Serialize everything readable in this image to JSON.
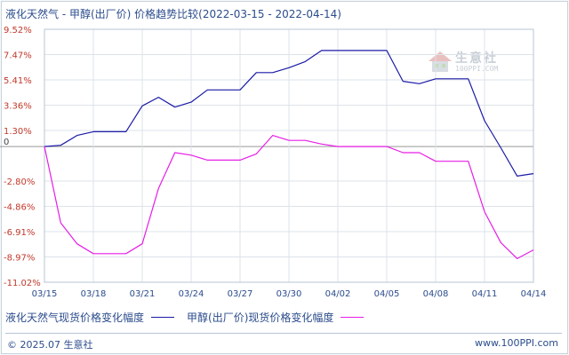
{
  "chart_data": {
    "type": "line",
    "title": "液化天然气 - 甲醇(出厂价) 价格趋势比较",
    "date_range": "(2022-03-15 - 2022-04-14)",
    "x_tick_labels": [
      "03/15",
      "03/18",
      "03/21",
      "03/24",
      "03/27",
      "03/30",
      "04/02",
      "04/05",
      "04/08",
      "04/11",
      "04/14"
    ],
    "y_tick_labels": [
      "9.52%",
      "7.47%",
      "5.41%",
      "3.36%",
      "1.30%",
      "0",
      "-2.80%",
      "-4.86%",
      "-6.91%",
      "-8.97%",
      "-11.02%"
    ],
    "y_tick_values": [
      9.52,
      7.47,
      5.41,
      3.36,
      1.3,
      0,
      -2.8,
      -4.86,
      -6.91,
      -8.97,
      -11.02
    ],
    "ylim": [
      -11.02,
      9.52
    ],
    "x_range": [
      0,
      30
    ],
    "grid": true,
    "series": [
      {
        "name": "液化天然气现货价格变化幅度",
        "color": "#1a1aa6",
        "x": [
          0,
          1,
          2,
          3,
          4,
          5,
          6,
          7,
          8,
          9,
          10,
          11,
          12,
          13,
          14,
          15,
          16,
          17,
          18,
          19,
          20,
          21,
          22,
          23,
          24,
          25,
          26,
          27,
          28,
          29,
          30
        ],
        "values": [
          0.0,
          0.1,
          0.9,
          1.2,
          1.2,
          1.2,
          3.3,
          4.0,
          3.2,
          3.6,
          4.6,
          4.6,
          4.6,
          6.0,
          6.0,
          6.4,
          6.9,
          7.8,
          7.8,
          7.8,
          7.8,
          7.8,
          5.3,
          5.1,
          5.5,
          5.5,
          5.5,
          2.1,
          -0.1,
          -2.4,
          -2.2
        ]
      },
      {
        "name": "甲醇(出厂价)现货价格变化幅度",
        "color": "#e61ee6",
        "x": [
          0,
          1,
          2,
          3,
          4,
          5,
          6,
          7,
          8,
          9,
          10,
          11,
          12,
          13,
          14,
          15,
          16,
          17,
          18,
          19,
          20,
          21,
          22,
          23,
          24,
          25,
          26,
          27,
          28,
          29,
          30
        ],
        "values": [
          0.0,
          -6.2,
          -7.9,
          -8.7,
          -8.7,
          -8.7,
          -7.9,
          -3.4,
          -0.5,
          -0.7,
          -1.1,
          -1.1,
          -1.1,
          -0.6,
          0.9,
          0.5,
          0.5,
          0.2,
          0.0,
          0.0,
          0.0,
          0.0,
          -0.5,
          -0.5,
          -1.2,
          -1.2,
          -1.2,
          -5.3,
          -7.8,
          -9.1,
          -8.4
        ]
      }
    ]
  },
  "legend": {
    "lng_label": "液化天然气现货价格变化幅度",
    "methanol_label": "甲醇(出厂价)现货价格变化幅度"
  },
  "watermark": {
    "brand": "生意社",
    "url": "100PPI.COM"
  },
  "footer": {
    "copyright": "© 2025.07 生意社",
    "site": "www.100PPI.com"
  },
  "colors": {
    "axis_text": "#c0392b",
    "title_text": "#2b4c8c",
    "grid": "#dde3ea",
    "zero_line": "#999999"
  }
}
